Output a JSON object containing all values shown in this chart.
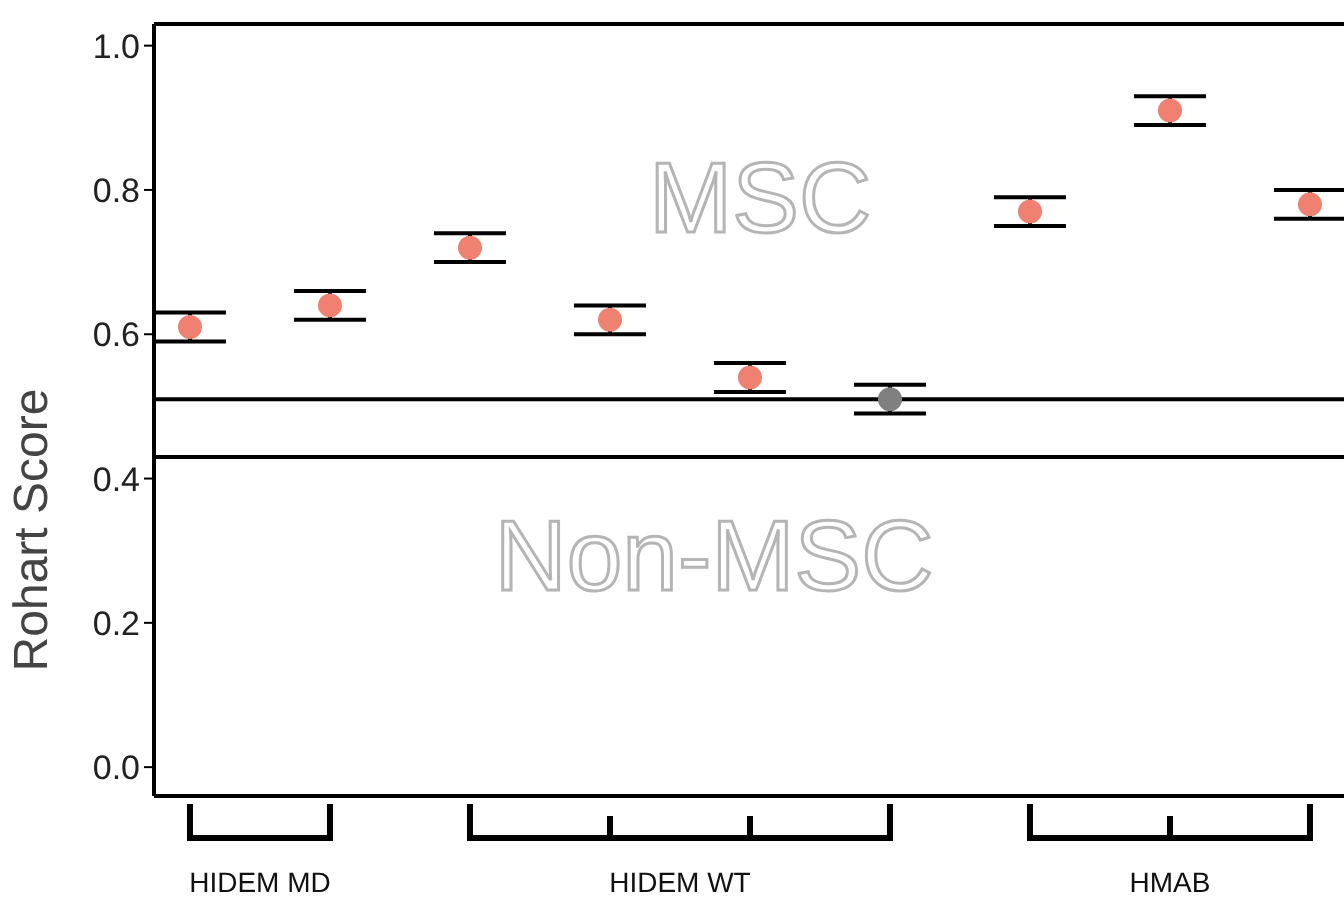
{
  "chart_data": {
    "type": "scatter",
    "ylabel": "Rohart Score",
    "categories": [
      null,
      null,
      null,
      null,
      null,
      null,
      null,
      null,
      null
    ],
    "values": [
      0.61,
      0.64,
      0.72,
      0.62,
      0.54,
      0.51,
      0.77,
      0.91,
      0.78
    ],
    "errors": [
      0.02,
      0.02,
      0.02,
      0.02,
      0.02,
      0.02,
      0.02,
      0.02,
      0.02
    ],
    "colors": [
      "#f08070",
      "#f08070",
      "#f08070",
      "#f08070",
      "#f08070",
      "#808080",
      "#f08070",
      "#f08070",
      "#f08070"
    ],
    "ylim": [
      -0.04,
      1.03
    ],
    "yticks": [
      {
        "value": 0,
        "label": "0.0"
      },
      0.2,
      0.4,
      0.6,
      0.8,
      {
        "value": 1,
        "label": "1.0"
      }
    ],
    "ref_lines": [
      {
        "axis": "y",
        "value": 0.51,
        "color": "#000000"
      },
      {
        "axis": "y",
        "value": 0.43,
        "color": "#000000"
      }
    ],
    "marker": "circle",
    "annotations": [
      "MSC",
      "Non-MSC",
      "HIDEM MD",
      "HIDEM WT",
      "HMAB"
    ]
  }
}
